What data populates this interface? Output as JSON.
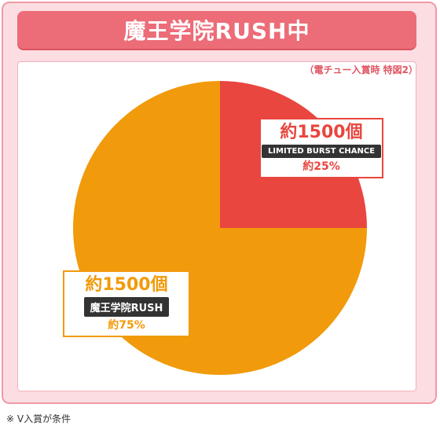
{
  "title": "魔王学院RUSH中",
  "subtitle": "（電チュー入賞時 特図2）",
  "footnote": "※ V入賞が条件",
  "chart_data": {
    "type": "pie",
    "slices": [
      {
        "count_label": "約1500個",
        "tag": "LIMITED BURST CHANCE",
        "percent_label": "約25%",
        "value": 25,
        "color": "#e8463e"
      },
      {
        "count_label": "約1500個",
        "tag": "魔王学院RUSH",
        "percent_label": "約75%",
        "value": 75,
        "color": "#f19a0b"
      }
    ],
    "start": "12 o'clock",
    "direction": "clockwise"
  }
}
